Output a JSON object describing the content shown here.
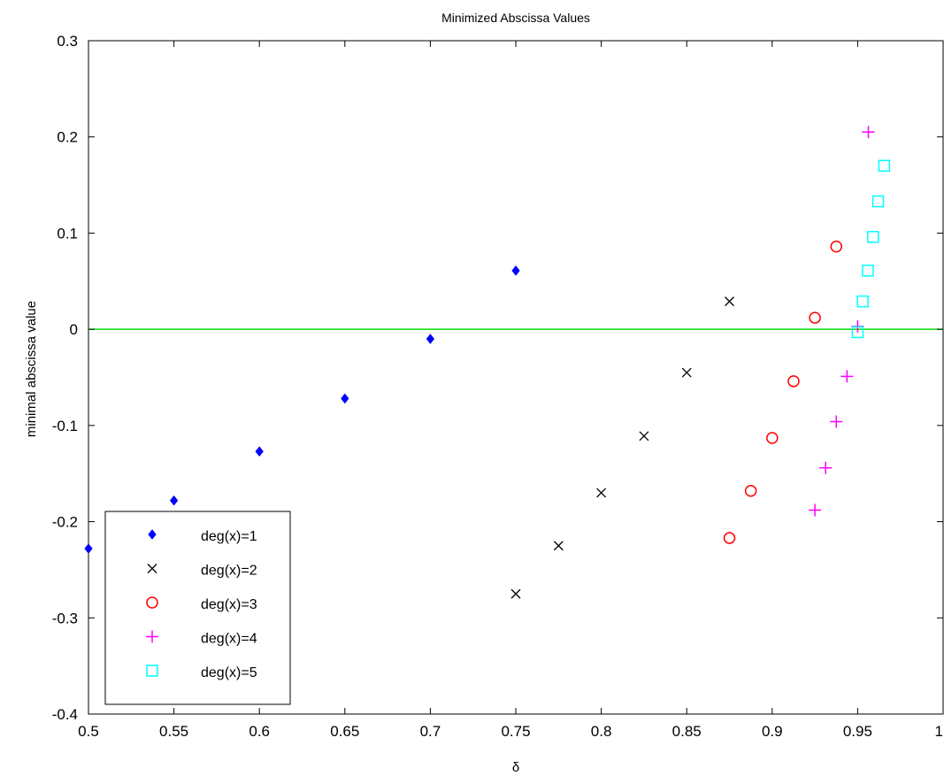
{
  "chart_data": {
    "type": "scatter",
    "title": "Minimized Abscissa Values",
    "xlabel": "δ",
    "ylabel": "minimal abscissa value",
    "xlim": [
      0.5,
      1.0
    ],
    "ylim": [
      -0.4,
      0.3
    ],
    "xticks": [
      "0.5",
      "0.55",
      "0.6",
      "0.65",
      "0.7",
      "0.75",
      "0.8",
      "0.85",
      "0.9",
      "0.95",
      "1"
    ],
    "yticks": [
      "-0.4",
      "-0.3",
      "-0.2",
      "-0.1",
      "0",
      "0.1",
      "0.2",
      "0.3"
    ],
    "grid": false,
    "legend_position": "bottom-left",
    "reference_line": {
      "y": 0,
      "color": "#00dd00"
    },
    "series": [
      {
        "name": "deg(x)=1",
        "marker": "diamond",
        "color": "#0000ff",
        "x": [
          0.5,
          0.55,
          0.6,
          0.65,
          0.7,
          0.75
        ],
        "y": [
          -0.228,
          -0.178,
          -0.127,
          -0.072,
          -0.01,
          0.061
        ]
      },
      {
        "name": "deg(x)=2",
        "marker": "x",
        "color": "#000000",
        "x": [
          0.75,
          0.775,
          0.8,
          0.825,
          0.85,
          0.875
        ],
        "y": [
          -0.275,
          -0.225,
          -0.17,
          -0.111,
          -0.045,
          0.029
        ]
      },
      {
        "name": "deg(x)=3",
        "marker": "circle",
        "color": "#ff0000",
        "x": [
          0.875,
          0.8875,
          0.9,
          0.9125,
          0.925,
          0.9375
        ],
        "y": [
          -0.217,
          -0.168,
          -0.113,
          -0.054,
          0.012,
          0.086
        ]
      },
      {
        "name": "deg(x)=4",
        "marker": "plus",
        "color": "#ff00ff",
        "x": [
          0.925,
          0.93125,
          0.9375,
          0.94375,
          0.95,
          0.95625
        ],
        "y": [
          -0.188,
          -0.144,
          -0.096,
          -0.049,
          0.003,
          0.205
        ]
      },
      {
        "name": "deg(x)=5",
        "marker": "square",
        "color": "#00ffff",
        "x": [
          0.95,
          0.953,
          0.956,
          0.959,
          0.962,
          0.9655
        ],
        "y": [
          -0.003,
          0.029,
          0.061,
          0.096,
          0.133,
          0.17
        ]
      }
    ]
  }
}
